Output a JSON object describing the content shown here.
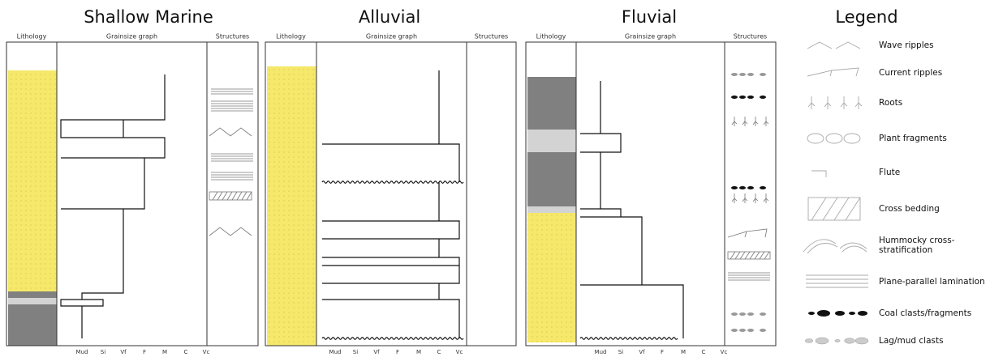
{
  "panels": [
    {
      "title": "Shallow Marine",
      "headers": [
        "Lithology",
        "Grainsize graph",
        "Structures"
      ],
      "grainsizes": [
        "Mud",
        "Si",
        "Vf",
        "F",
        "M",
        "C",
        "Vc"
      ]
    },
    {
      "title": "Alluvial",
      "headers": [
        "Lithology",
        "Grainsize graph",
        "Structures"
      ],
      "grainsizes": [
        "Mud",
        "Si",
        "Vf",
        "F",
        "M",
        "C",
        "Vc"
      ]
    },
    {
      "title": "Fluvial",
      "headers": [
        "Lithology",
        "Grainsize graph",
        "Structures"
      ],
      "grainsizes": [
        "Mud",
        "Si",
        "Vf",
        "F",
        "M",
        "C",
        "Vc"
      ]
    }
  ],
  "legend": {
    "title": "Legend",
    "items": [
      "Wave ripples",
      "Current ripples",
      "Roots",
      "Plant fragments",
      "Flute",
      "Cross bedding",
      [
        "Hummocky cross-",
        "stratification"
      ],
      "Plane-parallel lamination",
      "Coal clasts/fragments",
      "Lag/mud clasts"
    ]
  }
}
